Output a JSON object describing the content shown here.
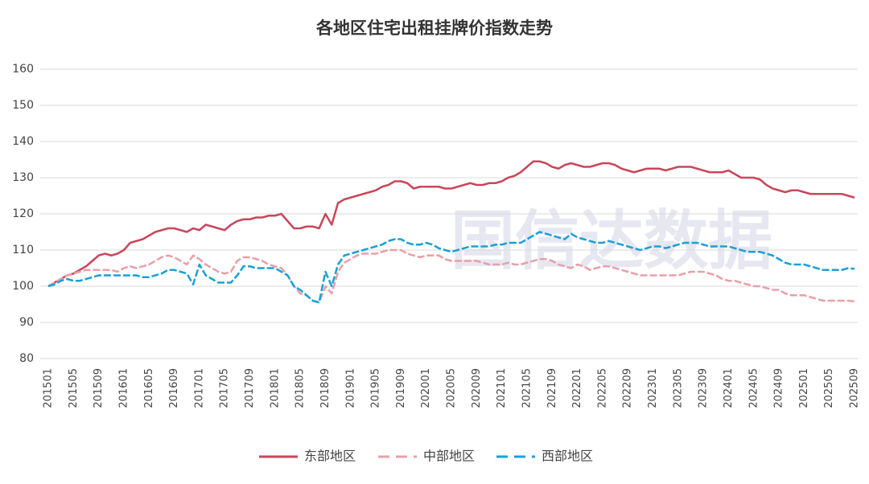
{
  "chart_data": {
    "type": "line",
    "title": "各地区住宅出租挂牌价指数走势",
    "watermark": "国信达数据",
    "categories": [
      "201501",
      null,
      null,
      null,
      "201505",
      null,
      null,
      null,
      "201509",
      null,
      null,
      null,
      "201601",
      null,
      null,
      null,
      "201605",
      null,
      null,
      null,
      "201609",
      null,
      null,
      null,
      "201701",
      null,
      null,
      null,
      "201705",
      null,
      null,
      null,
      "201709",
      null,
      null,
      null,
      "201801",
      null,
      null,
      null,
      "201805",
      null,
      null,
      null,
      "201809",
      null,
      null,
      null,
      "201901",
      null,
      null,
      null,
      "201905",
      null,
      null,
      null,
      "201909",
      null,
      null,
      null,
      "202001",
      null,
      null,
      null,
      "202005",
      null,
      null,
      null,
      "202009",
      null,
      null,
      null,
      "202101",
      null,
      null,
      null,
      "202105",
      null,
      null,
      null,
      "202109",
      null,
      null,
      null,
      "202201",
      null,
      null,
      null,
      "202205",
      null,
      null,
      null,
      "202209",
      null,
      null,
      null,
      "202301",
      null,
      null,
      null,
      "202305",
      null,
      null,
      null,
      "202309",
      null,
      null,
      null,
      "202401",
      null,
      null,
      null,
      "202405",
      null,
      null,
      null,
      "202409",
      null,
      null,
      null,
      "202501",
      null,
      null,
      null,
      "202505",
      null,
      null,
      null,
      "202509"
    ],
    "series": [
      {
        "name": "东部地区",
        "color": "#c9475b",
        "dash": false,
        "values": [
          100,
          101,
          102,
          103,
          103.5,
          104.5,
          105.5,
          107,
          108.5,
          109,
          108.5,
          109,
          110,
          112,
          112.5,
          113,
          114,
          115,
          115.5,
          116,
          116,
          115.5,
          115,
          116,
          115.5,
          117,
          116.5,
          116,
          115.5,
          117,
          118,
          118.5,
          118.5,
          119,
          119,
          119.5,
          119.5,
          120,
          118,
          116,
          116,
          116.5,
          116.5,
          116,
          120,
          117,
          123,
          124,
          124.5,
          125,
          125.5,
          126,
          126.5,
          127.5,
          128,
          129,
          129,
          128.5,
          127,
          127.5,
          127.5,
          127.5,
          127.5,
          127,
          127,
          127.5,
          128,
          128.5,
          128,
          128,
          128.5,
          128.5,
          129,
          130,
          130.5,
          131.5,
          133,
          134.5,
          134.5,
          134,
          133,
          132.5,
          133.5,
          134,
          133.5,
          133,
          133,
          133.5,
          134,
          134,
          133.5,
          132.5,
          132,
          131.5,
          132,
          132.5,
          132.5,
          132.5,
          132,
          132.5,
          133,
          133,
          133,
          132.5,
          132,
          131.5,
          131.5,
          131.5,
          132,
          131,
          130,
          130,
          130,
          129.5,
          128,
          127,
          126.5,
          126,
          126.5,
          126.5,
          126,
          125.5,
          125.5,
          125.5,
          125.5,
          125.5,
          125.5,
          125,
          124.5
        ]
      },
      {
        "name": "中部地区",
        "color": "#e8a0a8",
        "dash": true,
        "values": [
          100,
          101,
          102,
          103,
          103.5,
          104,
          104.5,
          104.5,
          104.5,
          104.5,
          104.5,
          104,
          105,
          105.5,
          105,
          105.5,
          106,
          107,
          108,
          108.5,
          108,
          107,
          106,
          108.5,
          107.5,
          106,
          105,
          104,
          103.5,
          104,
          107,
          108,
          108,
          107.5,
          107,
          106,
          105.5,
          105,
          103,
          100,
          98,
          97.5,
          96,
          95.5,
          100,
          98,
          104,
          106.5,
          107.5,
          108.5,
          109,
          109,
          109,
          109.5,
          110,
          110,
          110,
          109,
          108.5,
          108,
          108.5,
          108.5,
          108.5,
          107.5,
          107,
          107,
          107,
          107,
          107,
          106.5,
          106,
          106,
          106,
          106.5,
          106,
          106,
          106.5,
          107,
          107.5,
          107.5,
          107,
          106,
          105.5,
          105,
          106,
          105.5,
          104.5,
          105,
          105.5,
          105.5,
          105,
          104.5,
          104,
          103.5,
          103,
          103,
          103,
          103,
          103,
          103,
          103,
          103.5,
          104,
          104,
          104,
          103.5,
          103,
          102,
          101.5,
          101.5,
          101,
          100.5,
          100,
          100,
          99.5,
          99,
          99,
          98,
          97.5,
          97.5,
          97.5,
          97,
          96.5,
          96,
          96,
          96,
          96,
          96,
          95.8
        ]
      },
      {
        "name": "西部地区",
        "color": "#1aa0d8",
        "dash": true,
        "values": [
          100,
          100.5,
          101.5,
          102,
          101.5,
          101.5,
          102,
          102.5,
          103,
          103,
          103,
          103,
          103,
          103,
          103,
          102.5,
          102.5,
          103,
          103.5,
          104.5,
          104.5,
          104,
          103.5,
          100.5,
          106,
          103,
          102,
          101,
          101,
          101,
          103,
          105.5,
          105.5,
          105,
          105,
          105,
          105,
          104,
          103,
          100,
          99,
          97.5,
          96,
          95.5,
          104,
          100,
          106,
          108.5,
          109,
          109.5,
          110,
          110.5,
          111,
          111.5,
          112.5,
          113,
          113,
          112,
          111.5,
          111.5,
          112,
          111.5,
          110.5,
          110,
          109.5,
          110,
          110.5,
          111,
          111,
          111,
          111,
          111.5,
          111.5,
          112,
          112,
          112,
          113,
          114,
          115,
          114.5,
          114,
          113.5,
          113,
          114.5,
          113.5,
          113,
          112.5,
          112,
          112,
          112.5,
          112,
          111.5,
          111,
          110.5,
          110,
          110.5,
          111,
          111,
          110.5,
          111,
          111.5,
          112,
          112,
          112,
          111.5,
          111,
          111,
          111,
          111,
          110.5,
          110,
          109.5,
          109.5,
          109.5,
          109,
          108.5,
          107.5,
          106.5,
          106,
          106,
          106,
          105.5,
          105,
          104.5,
          104.5,
          104.5,
          104.5,
          105,
          104.8
        ]
      }
    ],
    "ylim": [
      80,
      160
    ],
    "yticks": [
      80,
      90,
      100,
      110,
      120,
      130,
      140,
      150,
      160
    ],
    "grid": true,
    "legend": "bottom"
  }
}
